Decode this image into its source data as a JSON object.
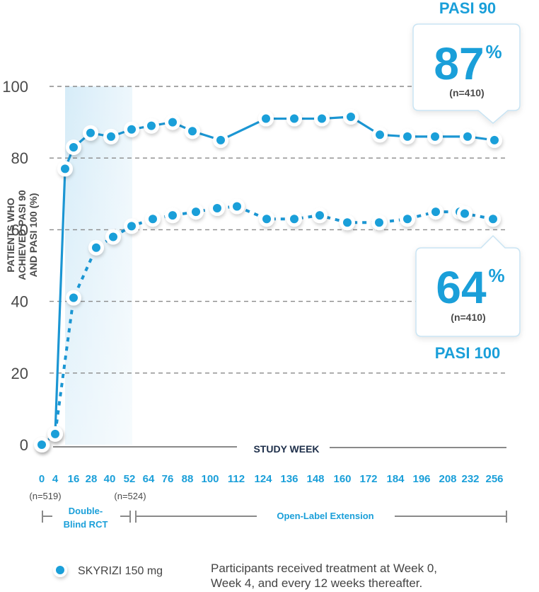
{
  "chart_data": {
    "type": "line",
    "title": "",
    "xlabel": "STUDY WEEK",
    "ylabel": [
      "PATIENTS WHO",
      "ACHIEVED PASI 90",
      "AND PASI 100 (%)"
    ],
    "ylim": [
      0,
      100
    ],
    "yticks": [
      0,
      20,
      40,
      60,
      80,
      100
    ],
    "grid": true,
    "categories": [
      "0",
      "4",
      "16",
      "28",
      "40",
      "52",
      "64",
      "76",
      "88",
      "100",
      "112",
      "124",
      "136",
      "148",
      "160",
      "172",
      "184",
      "196",
      "208",
      "232",
      "256"
    ],
    "series": [
      {
        "name": "PASI 90",
        "style": "solid",
        "values": [
          0,
          3,
          77,
          83,
          87,
          86,
          88,
          89,
          90,
          87.5,
          85,
          null,
          91,
          91,
          91,
          91.5,
          86.5,
          86,
          86,
          86,
          85
        ]
      },
      {
        "name": "PASI 100",
        "style": "dotted",
        "values": [
          0,
          3,
          41,
          55,
          58,
          61,
          63,
          64,
          65,
          66,
          66.5,
          63,
          63,
          64,
          62,
          62,
          63,
          65,
          65,
          64.5,
          63
        ]
      }
    ],
    "sample_sizes": [
      {
        "week": "0",
        "label": "(n=519)"
      },
      {
        "week": "52",
        "label": "(n=524)"
      }
    ],
    "phases": [
      {
        "label_line1": "Double-",
        "label_line2": "Blind RCT",
        "from": "0",
        "to": "52"
      },
      {
        "label_line1": "Open-Label Extension",
        "label_line2": "",
        "from": "52",
        "to": "256"
      }
    ],
    "callouts": [
      {
        "series": "PASI 90",
        "title": "PASI 90",
        "value": "87",
        "unit": "%",
        "n": "(n=410)"
      },
      {
        "series": "PASI 100",
        "title": "PASI 100",
        "value": "64",
        "unit": "%",
        "n": "(n=410)"
      }
    ],
    "legend": {
      "placement": "bottom-left",
      "entries": [
        {
          "label": "SKYRIZI 150 mg"
        }
      ]
    },
    "footnote": [
      "Participants received treatment at Week 0,",
      "Week 4, and every 12 weeks thereafter."
    ],
    "colors": {
      "accent": "#1a9fd9",
      "line": "#1b96d3",
      "shading": "#e3f2fa",
      "grid": "#8a8a8a",
      "text": "#4a4a4a"
    }
  }
}
